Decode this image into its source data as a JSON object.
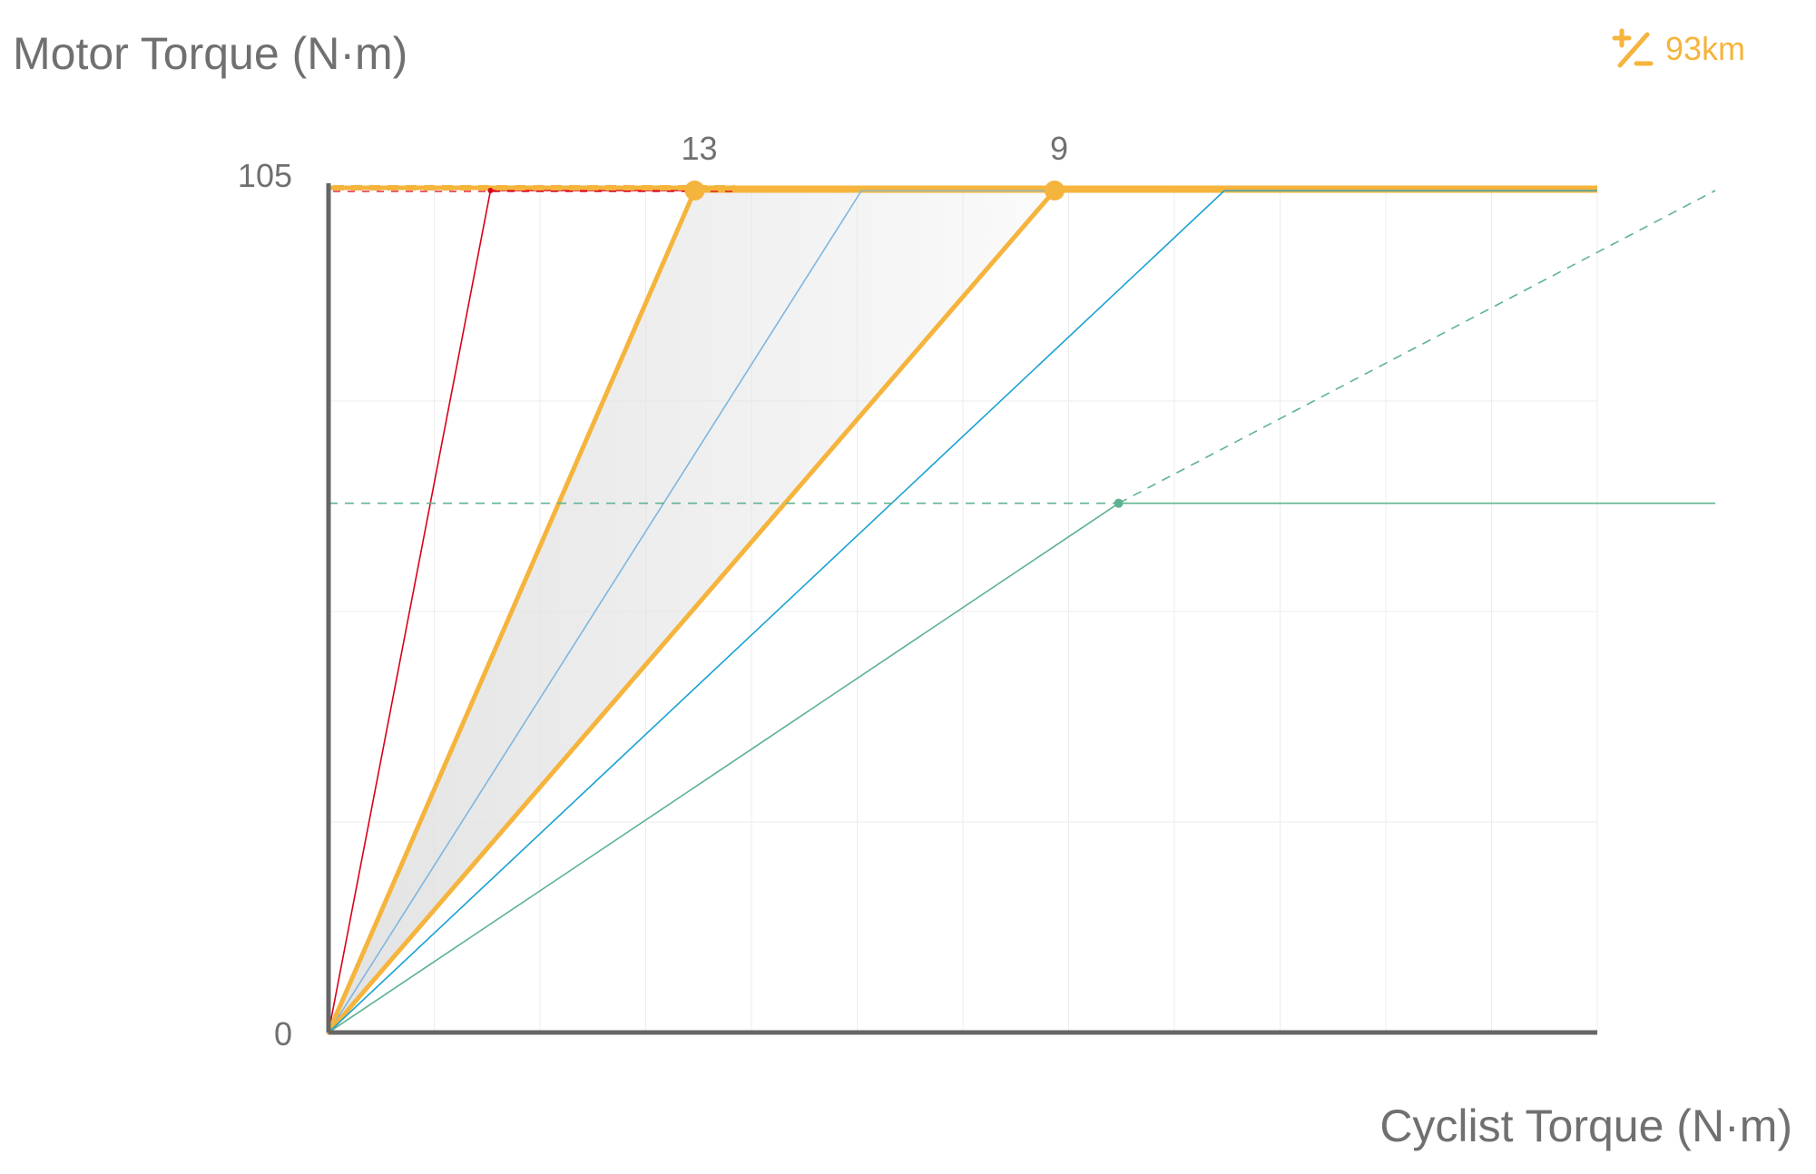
{
  "header": {
    "y_axis_title": "Motor Torque (N·m)",
    "range_icon": "plus-minus-icon",
    "range_value": "93km"
  },
  "footer": {
    "x_axis_title": "Cyclist Torque (N·m)"
  },
  "chart_data": {
    "type": "line",
    "title": "",
    "xlabel": "Cyclist Torque (N·m)",
    "ylabel": "Motor Torque (N·m)",
    "ylim": [
      0,
      105
    ],
    "y_tick_labels": [
      "0",
      "105"
    ],
    "grid": true,
    "max_motor_torque": 105,
    "series": [
      {
        "color": "#d9001b",
        "slope": 5.2,
        "cap": 105,
        "style": "thin"
      },
      {
        "color": "#d9001b",
        "slope": 2.3,
        "cap": 105,
        "style": "thin"
      },
      {
        "color": "#f5b43c",
        "slope": 2.3,
        "cap": 105,
        "style": "thick",
        "marker_label": "13"
      },
      {
        "color": "#7fb6de",
        "slope": 1.58,
        "cap": 105,
        "style": "thin"
      },
      {
        "color": "#f5b43c",
        "slope": 1.16,
        "cap": 105,
        "style": "thick",
        "marker_label": "9"
      },
      {
        "color": "#1aa0d5",
        "slope": 0.94,
        "cap": 105,
        "style": "thin"
      },
      {
        "color": "#5eb390",
        "slope": 0.67,
        "cap": 66,
        "style": "thin"
      }
    ],
    "shaded_band": {
      "between_slopes": [
        2.3,
        1.16
      ],
      "color": "#e6e6e6"
    }
  }
}
